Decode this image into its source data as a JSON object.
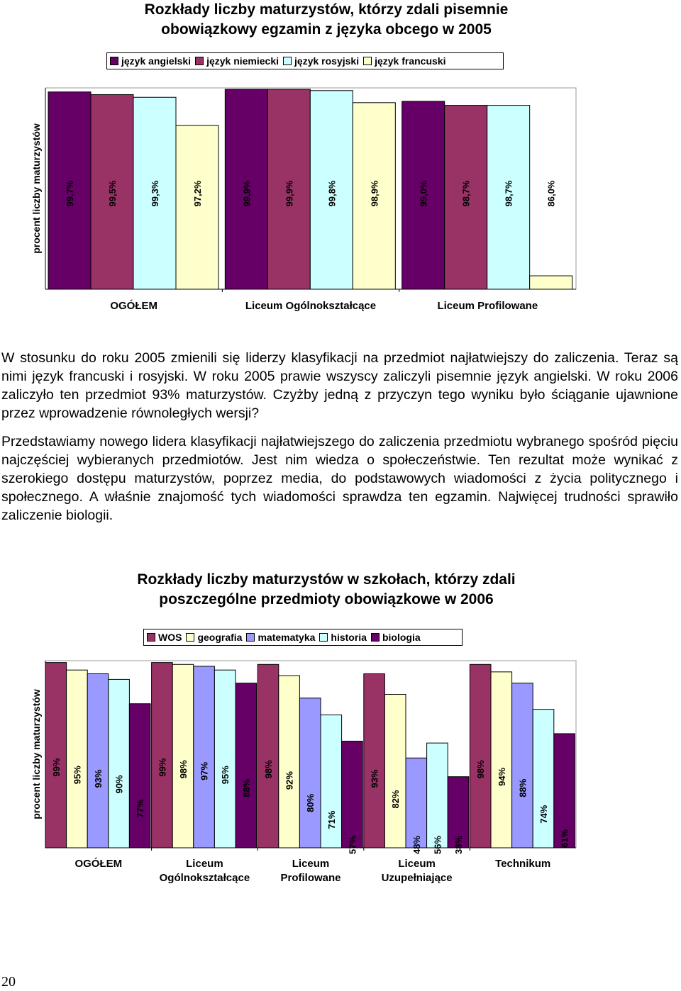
{
  "colors": {
    "angielski": "#660066",
    "niemiecki": "#993366",
    "rosyjski": "#CCFFFF",
    "francuski": "#FFFFCC",
    "wos": "#993366",
    "geografia": "#FFFFCC",
    "matematyka": "#9999FF",
    "historia": "#CCFFFF",
    "biologia": "#660066",
    "plot_bg": "#FFFFFF"
  },
  "chart_data": [
    {
      "type": "bar",
      "title_lines": [
        "Rozkłady liczby maturzystów, którzy zdali pisemnie",
        "obowiązkowy egzamin z języka obcego w 2005"
      ],
      "ylabel": "procent liczby maturzystów",
      "ylim": [
        85,
        100
      ],
      "legend_position": "top",
      "categories": [
        {
          "lines": [
            "OGÓŁEM"
          ]
        },
        {
          "lines": [
            "Liceum Ogólnokształcące"
          ]
        },
        {
          "lines": [
            "Liceum Profilowane"
          ]
        }
      ],
      "series": [
        {
          "name": "język angielski",
          "color_key": "angielski",
          "values": [
            99.7,
            99.9,
            99.0
          ],
          "labels": [
            "99,7%",
            "99,9%",
            "99,0%"
          ]
        },
        {
          "name": "język niemiecki",
          "color_key": "niemiecki",
          "values": [
            99.5,
            99.9,
            98.7
          ],
          "labels": [
            "99,5%",
            "99,9%",
            "98,7%"
          ]
        },
        {
          "name": "język rosyjski",
          "color_key": "rosyjski",
          "values": [
            99.3,
            99.8,
            98.7
          ],
          "labels": [
            "99,3%",
            "99,8%",
            "98,7%"
          ]
        },
        {
          "name": "język francuski",
          "color_key": "francuski",
          "values": [
            97.2,
            98.9,
            86.0
          ],
          "labels": [
            "97,2%",
            "98,9%",
            "86,0%"
          ]
        }
      ]
    },
    {
      "type": "bar",
      "title_lines": [
        "Rozkłady liczby maturzystów w szkołach, którzy zdali",
        "poszczególne przedmioty obowiązkowe w 2006"
      ],
      "ylabel": "procent liczby maturzystów",
      "ylim": [
        0,
        100
      ],
      "legend_position": "top",
      "categories": [
        {
          "lines": [
            "OGÓŁEM"
          ]
        },
        {
          "lines": [
            "Liceum",
            "Ogólnokształcące"
          ]
        },
        {
          "lines": [
            "Liceum",
            "Profilowane"
          ]
        },
        {
          "lines": [
            "Liceum",
            "Uzupełniające"
          ]
        },
        {
          "lines": [
            "Technikum"
          ]
        }
      ],
      "series": [
        {
          "name": "WOS",
          "color_key": "wos",
          "values": [
            99,
            99,
            98,
            93,
            98
          ],
          "labels": [
            "99%",
            "99%",
            "98%",
            "93%",
            "98%"
          ]
        },
        {
          "name": "geografia",
          "color_key": "geografia",
          "values": [
            95,
            98,
            92,
            82,
            94
          ],
          "labels": [
            "95%",
            "98%",
            "92%",
            "82%",
            "94%"
          ]
        },
        {
          "name": "matematyka",
          "color_key": "matematyka",
          "values": [
            93,
            97,
            80,
            48,
            88
          ],
          "labels": [
            "93%",
            "97%",
            "80%",
            "48%",
            "88%"
          ]
        },
        {
          "name": "historia",
          "color_key": "historia",
          "values": [
            90,
            95,
            71,
            56,
            74
          ],
          "labels": [
            "90%",
            "95%",
            "71%",
            "56%",
            "74%"
          ]
        },
        {
          "name": "biologia",
          "color_key": "biologia",
          "values": [
            77,
            88,
            57,
            38,
            61
          ],
          "labels": [
            "77%",
            "88%",
            "57%",
            "38%",
            "61%"
          ]
        }
      ]
    }
  ],
  "text": {
    "paragraph1": "W stosunku do roku 2005 zmienili się liderzy klasyfikacji na przedmiot najłatwiejszy do zaliczenia. Teraz są nimi język francuski i rosyjski. W roku 2005 prawie wszyscy zaliczyli pisemnie język angielski. W roku 2006 zaliczyło ten przedmiot 93% maturzystów. Czyżby jedną z przyczyn tego wyniku było ściąganie ujawnione przez wprowadzenie równoległych wersji?",
    "paragraph2": "Przedstawiamy nowego lidera klasyfikacji najłatwiejszego do zaliczenia przedmiotu wybranego spośród pięciu najczęściej wybieranych przedmiotów. Jest nim wiedza o społeczeństwie. Ten rezultat może wynikać z szerokiego dostępu maturzystów, poprzez media, do podstawowych wiadomości z życia politycznego i społecznego. A właśnie znajomość tych wiadomości sprawdza ten egzamin. Najwięcej trudności sprawiło zaliczenie biologii."
  },
  "page_number": "20"
}
